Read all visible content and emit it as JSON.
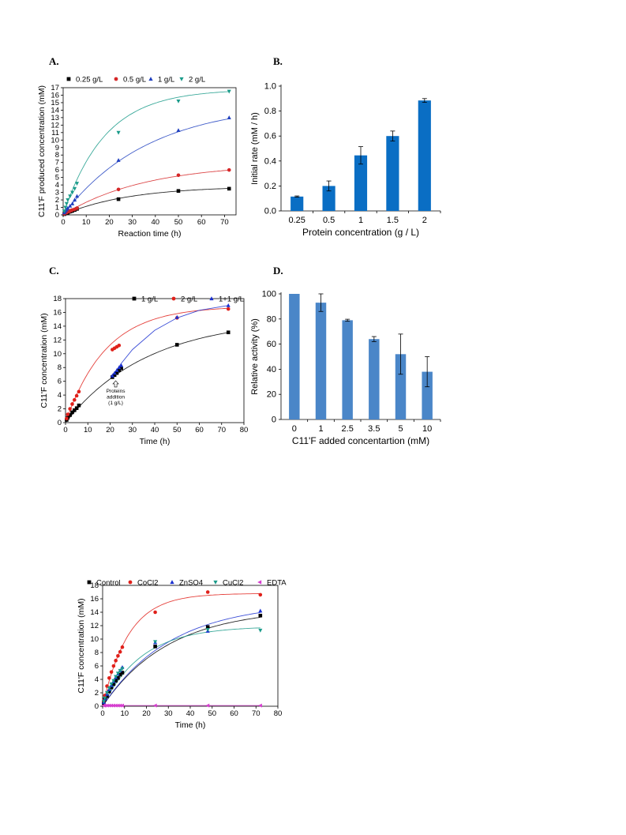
{
  "panels": {
    "A": "A.",
    "B": "B.",
    "C": "C.",
    "D": "D."
  },
  "chart_data": [
    {
      "id": "A",
      "type": "scatter",
      "xlabel": "Reaction time (h)",
      "ylabel": "C11'F produced concentration (mM)",
      "xlim": [
        0,
        75
      ],
      "ylim": [
        0,
        17
      ],
      "xticks": [
        0,
        10,
        20,
        30,
        40,
        50,
        60,
        70
      ],
      "yticks": [
        0,
        1,
        2,
        3,
        4,
        5,
        6,
        7,
        8,
        9,
        10,
        11,
        12,
        13,
        14,
        15,
        16,
        17
      ],
      "legend_position": "top",
      "series": [
        {
          "name": "0.25 g/L",
          "color": "#000000",
          "marker": "square",
          "x": [
            0.5,
            1,
            1.5,
            2,
            2.5,
            3,
            3.5,
            4,
            5,
            6,
            24,
            50,
            72
          ],
          "y": [
            0.1,
            0.2,
            0.25,
            0.3,
            0.4,
            0.45,
            0.5,
            0.55,
            0.65,
            0.8,
            2.1,
            3.2,
            3.5
          ],
          "fit": {
            "a": 3.85,
            "k": 0.035
          }
        },
        {
          "name": "0.5 g/L",
          "color": "#d62728",
          "marker": "circle",
          "x": [
            0.5,
            1,
            1.5,
            2,
            2.5,
            3,
            3.5,
            4,
            5,
            6,
            24,
            50,
            72
          ],
          "y": [
            0.15,
            0.25,
            0.3,
            0.4,
            0.45,
            0.5,
            0.6,
            0.65,
            0.75,
            0.9,
            3.4,
            5.3,
            6.0
          ],
          "fit": {
            "a": 6.9,
            "k": 0.028
          }
        },
        {
          "name": "1 g/L",
          "color": "#1f3fbf",
          "marker": "triangle-up",
          "x": [
            0.5,
            1,
            1.5,
            2,
            3,
            4,
            5,
            6,
            24,
            50,
            72
          ],
          "y": [
            0.3,
            0.5,
            0.7,
            0.9,
            1.2,
            1.5,
            2.0,
            2.5,
            7.3,
            11.3,
            13.0
          ],
          "fit": {
            "a": 15.0,
            "k": 0.027
          }
        },
        {
          "name": "2 g/L",
          "color": "#1a9b8a",
          "marker": "triangle-down",
          "x": [
            0.5,
            1,
            1.5,
            2,
            3,
            4,
            5,
            6,
            24,
            50,
            72
          ],
          "y": [
            0.5,
            1.0,
            1.5,
            2.0,
            2.5,
            3.0,
            3.5,
            4.2,
            11.0,
            15.2,
            16.5
          ],
          "fit": {
            "a": 16.8,
            "k": 0.055
          }
        }
      ]
    },
    {
      "id": "B",
      "type": "bar",
      "xlabel": "Protein concentration (g / L)",
      "ylabel": "Initial rate (mM / h)",
      "ylim": [
        0,
        1.0
      ],
      "yticks": [
        "0.0",
        "0.2",
        "0.4",
        "0.6",
        "0.8",
        "1.0"
      ],
      "categories": [
        "0.25",
        "0.5",
        "1",
        "1.5",
        "2"
      ],
      "values": [
        0.115,
        0.2,
        0.445,
        0.6,
        0.885
      ],
      "errors": [
        0.005,
        0.04,
        0.07,
        0.04,
        0.015
      ],
      "color": "#0a6ec4"
    },
    {
      "id": "C",
      "type": "scatter",
      "xlabel": "Time (h)",
      "ylabel": "C11'F concentration (mM)",
      "xlim": [
        0,
        80
      ],
      "ylim": [
        0,
        18
      ],
      "xticks": [
        0,
        10,
        20,
        30,
        40,
        50,
        60,
        70,
        80
      ],
      "yticks": [
        0,
        2,
        4,
        6,
        8,
        10,
        12,
        14,
        16,
        18
      ],
      "legend_position": "top-right",
      "annotation": {
        "lines": [
          "Proteins",
          "addition",
          "(1 g/L)"
        ],
        "x": 22.5,
        "y": 6.2
      },
      "series": [
        {
          "name": "1 g/L",
          "color": "#000000",
          "marker": "square",
          "x": [
            0.5,
            1,
            2,
            3,
            4,
            5,
            6,
            21,
            22,
            23,
            24,
            25,
            50,
            73
          ],
          "y": [
            0.4,
            0.7,
            1.1,
            1.5,
            1.8,
            2.1,
            2.5,
            6.6,
            6.9,
            7.2,
            7.6,
            7.9,
            11.3,
            13.1
          ],
          "fit": {
            "a": 15.2,
            "k": 0.027
          }
        },
        {
          "name": "2 g/L",
          "color": "#e0201a",
          "marker": "circle",
          "x": [
            0.5,
            1,
            2,
            3,
            4,
            5,
            6,
            21,
            22,
            23,
            24,
            50,
            73
          ],
          "y": [
            0.6,
            1.2,
            2.0,
            2.7,
            3.3,
            3.9,
            4.5,
            10.6,
            10.8,
            11.0,
            11.2,
            15.2,
            16.5
          ],
          "fit": {
            "a": 16.9,
            "k": 0.055
          }
        },
        {
          "name": "1+1 g/L",
          "color": "#1a2fd0",
          "marker": "triangle-up",
          "x": [
            21,
            22,
            23,
            24,
            25,
            50,
            73
          ],
          "y": [
            6.8,
            7.2,
            7.6,
            8.0,
            8.3,
            15.3,
            17.0
          ],
          "fit_points": [
            [
              21,
              6.7
            ],
            [
              25,
              8.6
            ],
            [
              30,
              10.6
            ],
            [
              40,
              13.4
            ],
            [
              50,
              15.2
            ],
            [
              60,
              16.3
            ],
            [
              73,
              17.0
            ]
          ]
        }
      ]
    },
    {
      "id": "D",
      "type": "bar",
      "xlabel": "C11'F added concentartion (mM)",
      "ylabel": "Relative activity (%)",
      "ylim": [
        0,
        100
      ],
      "yticks": [
        0,
        20,
        40,
        60,
        80,
        100
      ],
      "categories": [
        "0",
        "1",
        "2.5",
        "3.5",
        "5",
        "10"
      ],
      "values": [
        100,
        93,
        79,
        64,
        52,
        38
      ],
      "errors": [
        0,
        7,
        0.8,
        2,
        16,
        12
      ],
      "color": "#4a86c8"
    },
    {
      "id": "E",
      "type": "scatter",
      "xlabel": "Time (h)",
      "ylabel": "C11'F concentration (mM)",
      "xlim": [
        0,
        80
      ],
      "ylim": [
        0,
        18
      ],
      "xticks": [
        0,
        10,
        20,
        30,
        40,
        50,
        60,
        70,
        80
      ],
      "yticks": [
        0,
        2,
        4,
        6,
        8,
        10,
        12,
        14,
        16,
        18
      ],
      "legend_position": "top",
      "series": [
        {
          "name": "Control",
          "color": "#000000",
          "marker": "square",
          "x": [
            0.5,
            1,
            2,
            3,
            4,
            5,
            6,
            7,
            8,
            9,
            24,
            48,
            72
          ],
          "y": [
            0.5,
            1.0,
            1.5,
            2.2,
            2.8,
            3.3,
            3.8,
            4.2,
            4.7,
            5.0,
            8.9,
            11.8,
            13.5
          ],
          "fit": {
            "a": 14.6,
            "k": 0.033
          }
        },
        {
          "name": "CoCl2",
          "color": "#e0201a",
          "marker": "circle",
          "x": [
            0.5,
            1,
            2,
            3,
            4,
            5,
            6,
            7,
            8,
            9,
            24,
            48,
            72
          ],
          "y": [
            0.8,
            1.6,
            3.0,
            4.2,
            5.1,
            6.0,
            6.8,
            7.5,
            8.1,
            8.8,
            14.0,
            17.0,
            16.6
          ],
          "fit": {
            "a": 16.8,
            "k": 0.085
          }
        },
        {
          "name": "ZnSO4",
          "color": "#1a2fd0",
          "marker": "triangle-up",
          "x": [
            0.5,
            1,
            2,
            3,
            4,
            5,
            6,
            7,
            8,
            9,
            24,
            48,
            72
          ],
          "y": [
            0.6,
            1.1,
            1.8,
            2.5,
            3.1,
            3.7,
            4.3,
            4.8,
            5.3,
            5.8,
            9.5,
            11.2,
            14.2
          ],
          "fit": {
            "a": 15.5,
            "k": 0.032
          }
        },
        {
          "name": "CuCl2",
          "color": "#1a9b8a",
          "marker": "triangle-down",
          "x": [
            0.5,
            1,
            2,
            3,
            4,
            5,
            6,
            7,
            8,
            9,
            24,
            48,
            72
          ],
          "y": [
            0.7,
            1.2,
            2.0,
            2.7,
            3.3,
            3.8,
            4.4,
            4.9,
            5.3,
            5.6,
            9.6,
            11.4,
            11.3
          ],
          "fit": {
            "a": 11.9,
            "k": 0.055
          }
        },
        {
          "name": "EDTA",
          "color": "#d63ccf",
          "marker": "triangle-left",
          "x": [
            0.5,
            1,
            2,
            3,
            4,
            5,
            6,
            7,
            8,
            9,
            24,
            48,
            72
          ],
          "y": [
            0.1,
            0.1,
            0.1,
            0.1,
            0.1,
            0.1,
            0.1,
            0.1,
            0.1,
            0.1,
            0.1,
            0.1,
            0.1
          ],
          "fit": {
            "a": 0.1,
            "k": 5
          }
        }
      ]
    }
  ]
}
